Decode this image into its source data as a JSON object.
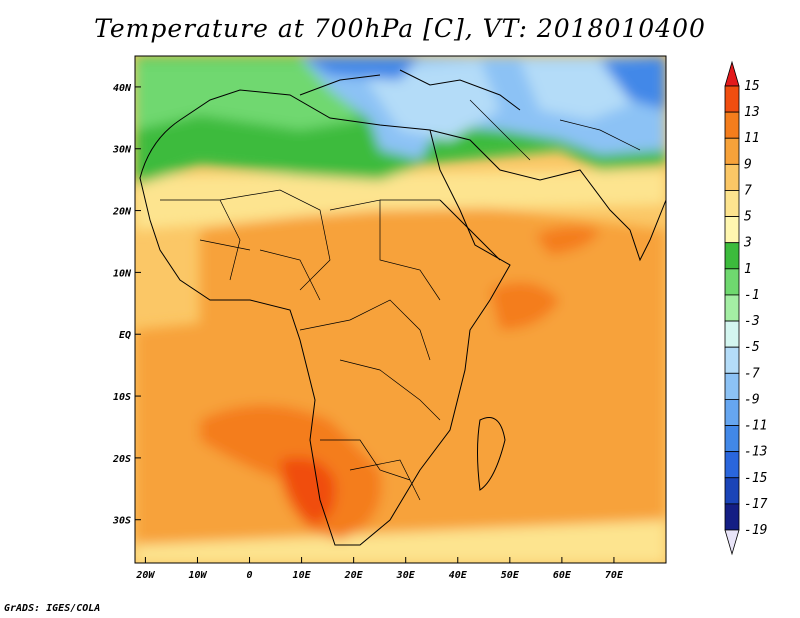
{
  "title": "Temperature at 700hPa [C], VT: 2018010400",
  "credit": "GrADS: IGES/COLA",
  "map": {
    "lon_ticks": [
      "20W",
      "10W",
      "0",
      "10E",
      "20E",
      "30E",
      "40E",
      "50E",
      "60E",
      "70E"
    ],
    "lat_ticks": [
      "40N",
      "30N",
      "20N",
      "10N",
      "EQ",
      "10S",
      "20S",
      "30S"
    ],
    "lon_range": [
      -22,
      80
    ],
    "lat_range": [
      -37,
      45
    ]
  },
  "colorbar": {
    "labels": [
      "15",
      "13",
      "11",
      "9",
      "7",
      "5",
      "3",
      "1",
      "-1",
      "-3",
      "-5",
      "-7",
      "-9",
      "-11",
      "-13",
      "-15",
      "-17",
      "-19"
    ],
    "colors": [
      "#e31a1c",
      "#f04e10",
      "#f47d1c",
      "#f7a23a",
      "#fbc766",
      "#fde48f",
      "#fff7b0",
      "#3cbb3c",
      "#6fd86f",
      "#a4eea4",
      "#d4f6f0",
      "#b4dcf8",
      "#8cc2f5",
      "#66a6f0",
      "#4288e8",
      "#2a66dc",
      "#1a44b8",
      "#141e84",
      "#0c0c50"
    ]
  }
}
